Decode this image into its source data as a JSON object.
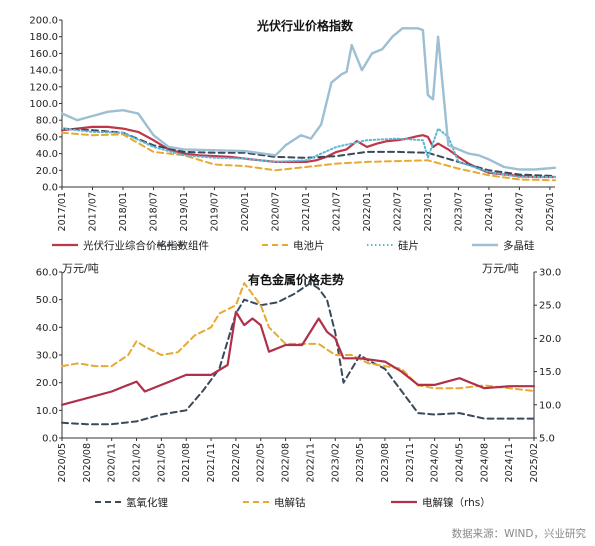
{
  "source": "数据来源：WIND，兴业研究",
  "chart_data": [
    {
      "type": "line",
      "title": "光伏行业价格指数",
      "ylim": [
        0,
        200
      ],
      "yticks": [
        "0.0",
        "20.0",
        "40.0",
        "60.0",
        "80.0",
        "100.0",
        "120.0",
        "140.0",
        "160.0",
        "180.0",
        "200.0"
      ],
      "xlim": [
        "2017/01",
        "2025/02"
      ],
      "xticks": [
        "2017/01",
        "2017/07",
        "2018/01",
        "2018/07",
        "2019/01",
        "2019/07",
        "2020/01",
        "2020/07",
        "2021/01",
        "2021/07",
        "2022/01",
        "2022/07",
        "2023/01",
        "2023/07",
        "2024/01",
        "2024/07",
        "2025/01"
      ],
      "legend_position": "bottom",
      "series": [
        {
          "name": "光伏行业综合价格指数",
          "color": "#c0354a",
          "style": "solid",
          "width": 2.2,
          "x": [
            "2017/01",
            "2017/04",
            "2017/07",
            "2017/10",
            "2018/01",
            "2018/04",
            "2018/07",
            "2018/10",
            "2019/01",
            "2019/04",
            "2019/07",
            "2019/10",
            "2020/01",
            "2020/04",
            "2020/07",
            "2020/10",
            "2021/01",
            "2021/03",
            "2021/05",
            "2021/07",
            "2021/09",
            "2021/11",
            "2022/01",
            "2022/03",
            "2022/05",
            "2022/07",
            "2022/09",
            "2022/11",
            "2022/12",
            "2023/01",
            "2023/02",
            "2023/03",
            "2023/05",
            "2023/07",
            "2023/09",
            "2023/11",
            "2024/01",
            "2024/04",
            "2024/07",
            "2024/10",
            "2025/02"
          ],
          "y": [
            68,
            70,
            72,
            72,
            70,
            66,
            56,
            45,
            40,
            38,
            37,
            36,
            34,
            32,
            30,
            30,
            30,
            32,
            36,
            42,
            45,
            55,
            48,
            52,
            55,
            56,
            58,
            61,
            62,
            60,
            48,
            52,
            45,
            36,
            28,
            22,
            17,
            15,
            13,
            12,
            12
          ]
        },
        {
          "name": "组件",
          "color": "#3a4a5a",
          "style": "dash",
          "width": 2,
          "x": [
            "2017/01",
            "2017/07",
            "2018/01",
            "2018/07",
            "2019/01",
            "2019/07",
            "2020/01",
            "2020/07",
            "2021/01",
            "2021/07",
            "2022/01",
            "2022/07",
            "2023/01",
            "2023/07",
            "2024/01",
            "2024/07",
            "2025/02"
          ],
          "y": [
            70,
            68,
            65,
            50,
            42,
            41,
            41,
            36,
            35,
            37,
            42,
            42,
            41,
            30,
            20,
            15,
            13
          ]
        },
        {
          "name": "电池片",
          "color": "#e8a932",
          "style": "dash",
          "width": 2,
          "x": [
            "2017/01",
            "2017/07",
            "2018/01",
            "2018/07",
            "2019/01",
            "2019/07",
            "2020/01",
            "2020/07",
            "2021/01",
            "2021/07",
            "2022/01",
            "2022/07",
            "2023/01",
            "2023/07",
            "2024/01",
            "2024/07",
            "2025/02"
          ],
          "y": [
            65,
            62,
            63,
            42,
            38,
            27,
            25,
            20,
            24,
            28,
            30,
            31,
            32,
            22,
            14,
            9,
            8
          ]
        },
        {
          "name": "硅片",
          "color": "#5ab8d6",
          "style": "dot",
          "width": 2,
          "x": [
            "2017/01",
            "2017/07",
            "2018/01",
            "2018/07",
            "2019/01",
            "2019/07",
            "2020/01",
            "2020/07",
            "2021/01",
            "2021/07",
            "2022/01",
            "2022/07",
            "2022/12",
            "2023/01",
            "2023/03",
            "2023/05",
            "2023/07",
            "2024/01",
            "2024/07",
            "2025/02"
          ],
          "y": [
            70,
            66,
            65,
            48,
            38,
            35,
            34,
            30,
            32,
            48,
            56,
            58,
            56,
            35,
            70,
            60,
            30,
            18,
            12,
            12
          ]
        },
        {
          "name": "多晶硅",
          "color": "#9dbfd4",
          "style": "solid",
          "width": 2.4,
          "x": [
            "2017/01",
            "2017/04",
            "2017/07",
            "2017/10",
            "2018/01",
            "2018/04",
            "2018/07",
            "2018/10",
            "2019/01",
            "2019/07",
            "2020/01",
            "2020/07",
            "2020/09",
            "2020/12",
            "2021/02",
            "2021/04",
            "2021/06",
            "2021/08",
            "2021/09",
            "2021/10",
            "2021/12",
            "2022/02",
            "2022/04",
            "2022/06",
            "2022/08",
            "2022/09",
            "2022/11",
            "2022/12",
            "2023/01",
            "2023/02",
            "2023/03",
            "2023/05",
            "2023/07",
            "2023/09",
            "2023/11",
            "2024/01",
            "2024/04",
            "2024/07",
            "2024/10",
            "2025/02"
          ],
          "y": [
            88,
            80,
            85,
            90,
            92,
            88,
            62,
            48,
            45,
            44,
            43,
            38,
            50,
            62,
            58,
            75,
            125,
            135,
            138,
            170,
            140,
            160,
            165,
            180,
            190,
            190,
            190,
            188,
            110,
            105,
            180,
            50,
            45,
            40,
            38,
            33,
            24,
            21,
            21,
            23
          ]
        }
      ]
    },
    {
      "type": "line",
      "title": "有色金属价格走势",
      "y_left_unit": "万元/吨",
      "y_right_unit": "万元/吨",
      "ylim_left": [
        0,
        60
      ],
      "ylim_right": [
        5,
        30
      ],
      "yticks_left": [
        "0.0",
        "10.0",
        "20.0",
        "30.0",
        "40.0",
        "50.0",
        "60.0"
      ],
      "yticks_right": [
        "5.0",
        "10.0",
        "15.0",
        "20.0",
        "25.0",
        "30.0"
      ],
      "xlim": [
        "2020/05",
        "2025/02"
      ],
      "xticks": [
        "2020/05",
        "2020/08",
        "2020/11",
        "2021/02",
        "2021/05",
        "2021/08",
        "2021/11",
        "2022/02",
        "2022/05",
        "2022/08",
        "2022/11",
        "2023/02",
        "2023/05",
        "2023/08",
        "2023/11",
        "2024/02",
        "2024/05",
        "2024/08",
        "2024/11",
        "2025/02"
      ],
      "legend_position": "bottom",
      "series": [
        {
          "name": "氢氧化锂",
          "axis": "left",
          "color": "#3a4a5a",
          "style": "dash",
          "width": 2,
          "x": [
            "2020/05",
            "2020/08",
            "2020/11",
            "2021/02",
            "2021/05",
            "2021/08",
            "2021/10",
            "2021/12",
            "2022/02",
            "2022/03",
            "2022/05",
            "2022/07",
            "2022/09",
            "2022/11",
            "2022/12",
            "2023/01",
            "2023/02",
            "2023/03",
            "2023/04",
            "2023/05",
            "2023/06",
            "2023/08",
            "2023/10",
            "2023/12",
            "2024/02",
            "2024/05",
            "2024/08",
            "2024/11",
            "2025/02"
          ],
          "y": [
            5.5,
            5,
            5,
            6,
            8.5,
            10,
            17,
            25,
            45,
            50,
            48,
            49,
            52,
            56,
            54,
            50,
            38,
            20,
            25,
            30,
            28,
            25,
            17,
            9,
            8.5,
            9,
            7,
            7,
            7
          ]
        },
        {
          "name": "电解钴",
          "axis": "left",
          "color": "#e8a932",
          "style": "dash",
          "width": 2,
          "x": [
            "2020/05",
            "2020/07",
            "2020/09",
            "2020/11",
            "2021/01",
            "2021/02",
            "2021/03",
            "2021/05",
            "2021/07",
            "2021/09",
            "2021/11",
            "2021/12",
            "2022/02",
            "2022/03",
            "2022/05",
            "2022/06",
            "2022/08",
            "2022/10",
            "2022/12",
            "2023/02",
            "2023/04",
            "2023/06",
            "2023/08",
            "2023/10",
            "2023/12",
            "2024/02",
            "2024/05",
            "2024/08",
            "2024/11",
            "2025/02"
          ],
          "y": [
            26,
            27,
            26,
            26,
            30,
            35,
            33,
            30,
            31,
            37,
            40,
            45,
            48,
            56,
            48,
            40,
            34,
            34,
            34,
            30,
            30,
            27,
            26,
            25,
            19,
            18,
            18,
            19,
            18,
            17
          ]
        },
        {
          "name": "电解镍（rhs）",
          "axis": "right",
          "color": "#b0304a",
          "style": "solid",
          "width": 2.2,
          "x": [
            "2020/05",
            "2020/08",
            "2020/11",
            "2021/02",
            "2021/03",
            "2021/05",
            "2021/08",
            "2021/11",
            "2022/01",
            "2022/02",
            "2022/03",
            "2022/04",
            "2022/05",
            "2022/06",
            "2022/08",
            "2022/10",
            "2022/12",
            "2023/01",
            "2023/02",
            "2023/03",
            "2023/05",
            "2023/08",
            "2023/10",
            "2023/12",
            "2024/02",
            "2024/05",
            "2024/08",
            "2024/11",
            "2025/02"
          ],
          "y": [
            10,
            11,
            12,
            13.5,
            12,
            13,
            14.5,
            14.5,
            16,
            24,
            22,
            23,
            22,
            18,
            19,
            19,
            23,
            21,
            20,
            17,
            17,
            16.5,
            15,
            13,
            13,
            14,
            12.5,
            12.8,
            12.8
          ]
        }
      ]
    }
  ]
}
